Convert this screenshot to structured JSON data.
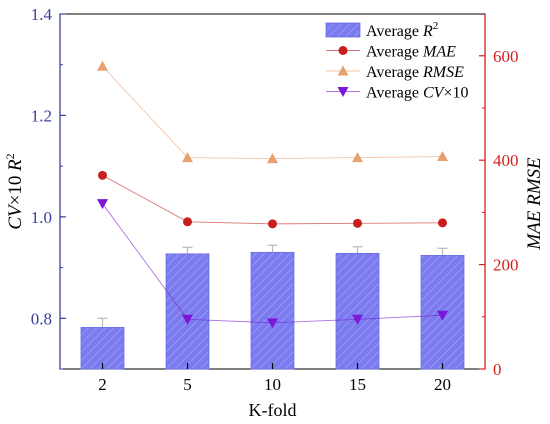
{
  "chart_data": {
    "type": "bar",
    "xlabel": "K-fold",
    "categories": [
      "2",
      "5",
      "10",
      "15",
      "20"
    ],
    "left_axis": {
      "label_parts": [
        "CV",
        "×10 ",
        "R",
        "2"
      ],
      "ylim": [
        0.7,
        1.4
      ],
      "ticks": [
        0.8,
        1.0,
        1.2,
        1.4
      ],
      "tick_labels": [
        "0.8",
        "1.0",
        "1.2",
        "1.4"
      ],
      "color": "#3b3fa0"
    },
    "right_axis": {
      "label_parts": [
        "MAE",
        "RMSE"
      ],
      "ylim": [
        0,
        680
      ],
      "ticks": [
        0,
        200,
        400,
        600
      ],
      "tick_labels": [
        "0",
        "200",
        "400",
        "600"
      ],
      "color": "#d62020"
    },
    "series": [
      {
        "name": "Average R2",
        "legend_parts": [
          "Average ",
          "R",
          "2"
        ],
        "kind": "bar",
        "axis": "left",
        "values": [
          0.782,
          0.927,
          0.93,
          0.928,
          0.924
        ],
        "errors": [
          0.018,
          0.013,
          0.014,
          0.013,
          0.014
        ],
        "color": "#7b7bef"
      },
      {
        "name": "Average MAE",
        "legend_parts": [
          "Average ",
          "MAE"
        ],
        "kind": "line",
        "axis": "right",
        "marker": "circle",
        "values": [
          371,
          282,
          278,
          279,
          280
        ],
        "color": "#c81e1e"
      },
      {
        "name": "Average RMSE",
        "legend_parts": [
          "Average ",
          "RMSE"
        ],
        "kind": "line",
        "axis": "right",
        "marker": "triangle-up",
        "values": [
          580,
          405,
          403,
          405,
          407
        ],
        "color": "#e8a070"
      },
      {
        "name": "Average CV×10",
        "legend_parts": [
          "Average ",
          "CV",
          "×10"
        ],
        "kind": "line",
        "axis": "left",
        "marker": "triangle-down",
        "values": [
          1.026,
          0.798,
          0.791,
          0.798,
          0.806
        ],
        "color": "#7b17d6"
      }
    ],
    "legend_position": "top-right",
    "grid": false
  }
}
